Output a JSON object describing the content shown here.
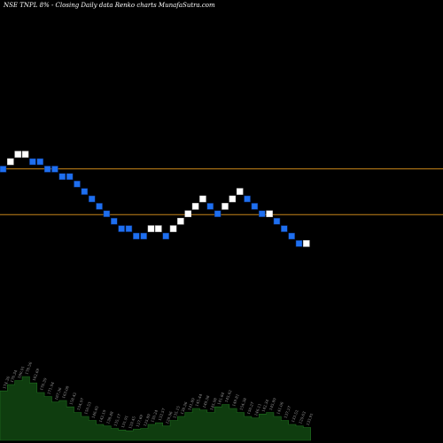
{
  "header": {
    "title": "NSE TNPL  8% -  Closing Daily data  Renko  charts MunafaSutra.com"
  },
  "colors": {
    "background": "#000000",
    "up_brick": "#ffffff",
    "down_brick": "#1e6ff0",
    "brick_outline": "#0a2a6a",
    "level_line": "#c8861a",
    "volume_fill": "#0f3d0f",
    "volume_edge": "#1f6f1f",
    "volume_label": "#9a9a9a"
  },
  "chart_data": {
    "type": "renko",
    "brick_levels": [
      9,
      10,
      11,
      11,
      10,
      10,
      9,
      9,
      8,
      8,
      7,
      6,
      5,
      4,
      3,
      2,
      1,
      1,
      0,
      0,
      1,
      1,
      0,
      1,
      2,
      3,
      4,
      5,
      4,
      3,
      4,
      5,
      6,
      5,
      4,
      3,
      3,
      2,
      1,
      0,
      -1,
      -1
    ],
    "brick_directions": [
      "down",
      "up",
      "up",
      "up",
      "down",
      "down",
      "down",
      "down",
      "down",
      "down",
      "down",
      "down",
      "down",
      "down",
      "down",
      "down",
      "down",
      "down",
      "down",
      "down",
      "up",
      "up",
      "down",
      "up",
      "up",
      "up",
      "up",
      "up",
      "down",
      "down",
      "up",
      "up",
      "up",
      "down",
      "down",
      "down",
      "up",
      "down",
      "down",
      "down",
      "down",
      "up"
    ],
    "reference_levels": [
      9.45,
      3.3
    ],
    "volume": {
      "relative_heights": [
        0.62,
        0.7,
        0.75,
        0.8,
        0.72,
        0.6,
        0.55,
        0.48,
        0.5,
        0.42,
        0.35,
        0.3,
        0.25,
        0.2,
        0.18,
        0.15,
        0.13,
        0.12,
        0.14,
        0.15,
        0.2,
        0.22,
        0.18,
        0.25,
        0.3,
        0.35,
        0.4,
        0.38,
        0.35,
        0.42,
        0.45,
        0.4,
        0.35,
        0.3,
        0.28,
        0.33,
        0.35,
        0.3,
        0.25,
        0.2,
        0.18,
        0.16
      ],
      "labels": [
        "174.36",
        "176.34",
        "180.91",
        "178.56",
        "182.69",
        "176.39",
        "171.94",
        "167.36",
        "163.08",
        "158.42",
        "154.97",
        "150.53",
        "146.85",
        "142.19",
        "138.48",
        "135.17",
        "131.91",
        "129.45",
        "127.69",
        "125.89",
        "130.24",
        "133.57",
        "129.96",
        "135.15",
        "138.36",
        "141.89",
        "145.44",
        "149.58",
        "145.98",
        "141.84",
        "145.62",
        "149.81",
        "154.38",
        "150.27",
        "146.11",
        "142.34",
        "145.89",
        "141.06",
        "137.27",
        "133.52",
        "129.63",
        "133.91"
      ]
    }
  }
}
